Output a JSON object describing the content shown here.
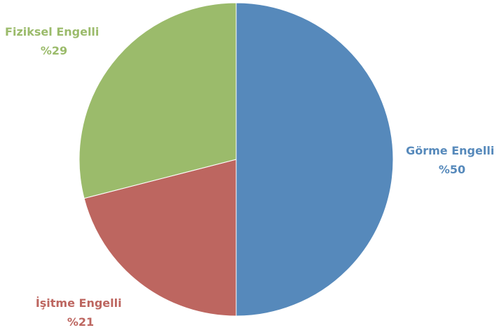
{
  "chart_data": {
    "type": "pie",
    "title": "",
    "start_angle_deg": 0,
    "direction": "clockwise",
    "slices": [
      {
        "label": "Görme Engelli",
        "value": 50,
        "value_label": "%50",
        "color": "#5689BB"
      },
      {
        "label": "İşitme Engelli",
        "value": 21,
        "value_label": "%21",
        "color": "#BD6660"
      },
      {
        "label": "Fiziksel Engelli",
        "value": 29,
        "value_label": "%29",
        "color": "#9BBB6B"
      }
    ],
    "legend": "none",
    "data_labels": "outside"
  }
}
